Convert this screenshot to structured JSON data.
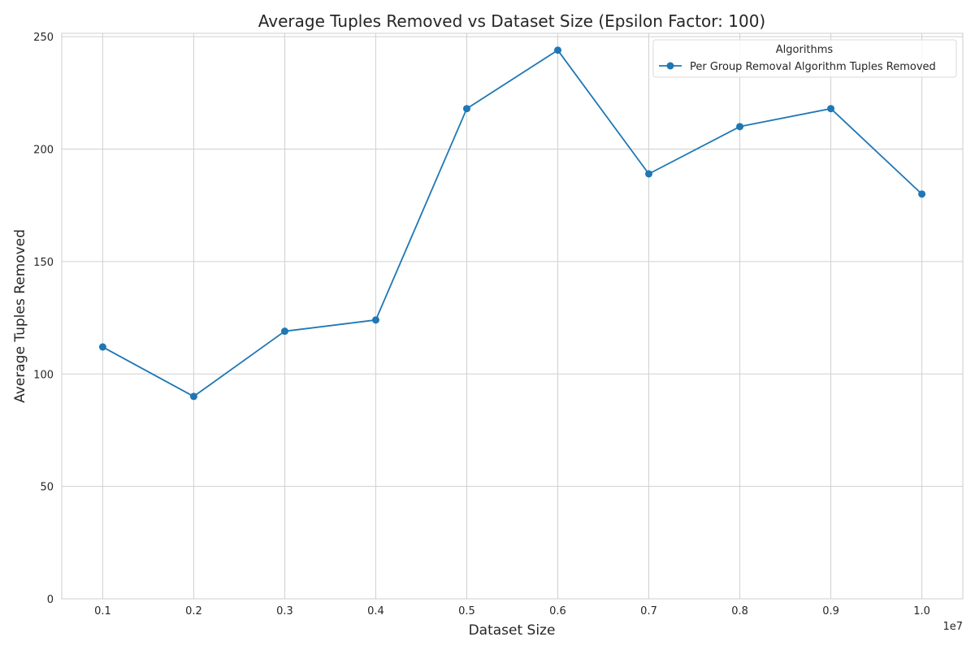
{
  "chart_data": {
    "type": "line",
    "title": "Average Tuples Removed vs Dataset Size (Epsilon Factor: 100)",
    "xlabel": "Dataset Size",
    "ylabel": "Average Tuples Removed",
    "x_offset_label": "1e7",
    "x": [
      0.1,
      0.2,
      0.3,
      0.4,
      0.5,
      0.6,
      0.7,
      0.8,
      0.9,
      1.0
    ],
    "x_tick_labels": [
      "0.1",
      "0.2",
      "0.3",
      "0.4",
      "0.5",
      "0.6",
      "0.7",
      "0.8",
      "0.9",
      "1.0"
    ],
    "y_ticks": [
      0,
      50,
      100,
      150,
      200,
      250
    ],
    "y_tick_labels": [
      "0",
      "50",
      "100",
      "150",
      "200",
      "250"
    ],
    "xlim": [
      0.055,
      1.045
    ],
    "ylim": [
      0,
      251.5
    ],
    "grid": true,
    "legend": {
      "title": "Algorithms",
      "placement": "top-right"
    },
    "series": [
      {
        "name": "Per Group Removal Algorithm Tuples Removed",
        "color": "#1f77b4",
        "marker": "circle",
        "values": [
          112,
          90,
          119,
          124,
          218,
          244,
          189,
          210,
          218,
          180
        ]
      }
    ]
  }
}
